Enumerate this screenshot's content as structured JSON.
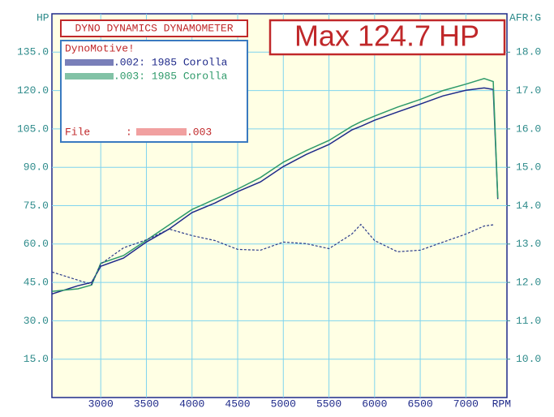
{
  "chart_data": {
    "type": "line",
    "title": "DYNO DYNAMICS DYNAMOMETER",
    "annotation": "Max 124.7 HP",
    "legend_title": "DynoMotive!",
    "file_label": "File",
    "file_sep": ":",
    "file_name": ".003",
    "y_label": "HP",
    "y2_label": "AFR:G",
    "x_label": "RPM",
    "x": [
      2467,
      2750,
      2900,
      3000,
      3250,
      3500,
      3750,
      4000,
      4250,
      4500,
      4750,
      5000,
      5250,
      5500,
      5750,
      5850,
      6000,
      6250,
      6500,
      6750,
      7000,
      7200,
      7300,
      7350
    ],
    "series": [
      {
        "name": ".002: 1985 Corolla",
        "color": "#1f2a8a",
        "values": [
          40.5,
          43.7,
          45,
          51.3,
          54.5,
          60.8,
          65.9,
          72.3,
          76,
          80.5,
          84.3,
          90.3,
          95,
          98.9,
          104.6,
          106,
          108.4,
          111.6,
          114.7,
          117.9,
          120.1,
          121,
          120.4,
          77.6
        ]
      },
      {
        "name": ".003: 1985 Corolla",
        "color": "#2e9a6a",
        "values": [
          41.5,
          42.5,
          44,
          52.5,
          55.5,
          61.5,
          67.5,
          73.5,
          77.5,
          81.5,
          86,
          92,
          96.5,
          100.5,
          106,
          107.8,
          110,
          113.5,
          116.5,
          120,
          122.5,
          124.7,
          123.5,
          78
        ]
      },
      {
        "color": "#2a3a8a",
        "axis": "y2",
        "dashed": true,
        "values": [
          12.27,
          12.06,
          11.95,
          12.48,
          12.9,
          13.11,
          13.39,
          13.22,
          13.09,
          12.86,
          12.84,
          13.05,
          13.01,
          12.88,
          13.26,
          13.51,
          13.09,
          12.8,
          12.84,
          13.05,
          13.26,
          13.47,
          13.5,
          null
        ]
      }
    ],
    "xlim": [
      2465,
      7450
    ],
    "xticks": [
      3000,
      3500,
      4000,
      4500,
      5000,
      5500,
      6000,
      6500,
      7000
    ],
    "ylim": [
      0,
      150
    ],
    "yticks": [
      {
        "value": 15,
        "label": "15.0"
      },
      {
        "value": 30,
        "label": "30.0"
      },
      {
        "value": 45,
        "label": "45.0"
      },
      {
        "value": 60,
        "label": "60.0"
      },
      {
        "value": 75,
        "label": "75.0"
      },
      {
        "value": 90,
        "label": "90.0"
      },
      {
        "value": 105,
        "label": "105.0"
      },
      {
        "value": 120,
        "label": "120.0"
      },
      {
        "value": 135,
        "label": "135.0"
      }
    ],
    "y2lim": [
      9,
      19
    ],
    "y2ticks": [
      {
        "value": 10,
        "label": "10.0"
      },
      {
        "value": 11,
        "label": "11.0"
      },
      {
        "value": 12,
        "label": "12.0"
      },
      {
        "value": 13,
        "label": "13.0"
      },
      {
        "value": 14,
        "label": "14.0"
      },
      {
        "value": 15,
        "label": "15.0"
      },
      {
        "value": 16,
        "label": "16.0"
      },
      {
        "value": 17,
        "label": "17.0"
      },
      {
        "value": 18,
        "label": "18.0"
      }
    ],
    "grid": true
  }
}
